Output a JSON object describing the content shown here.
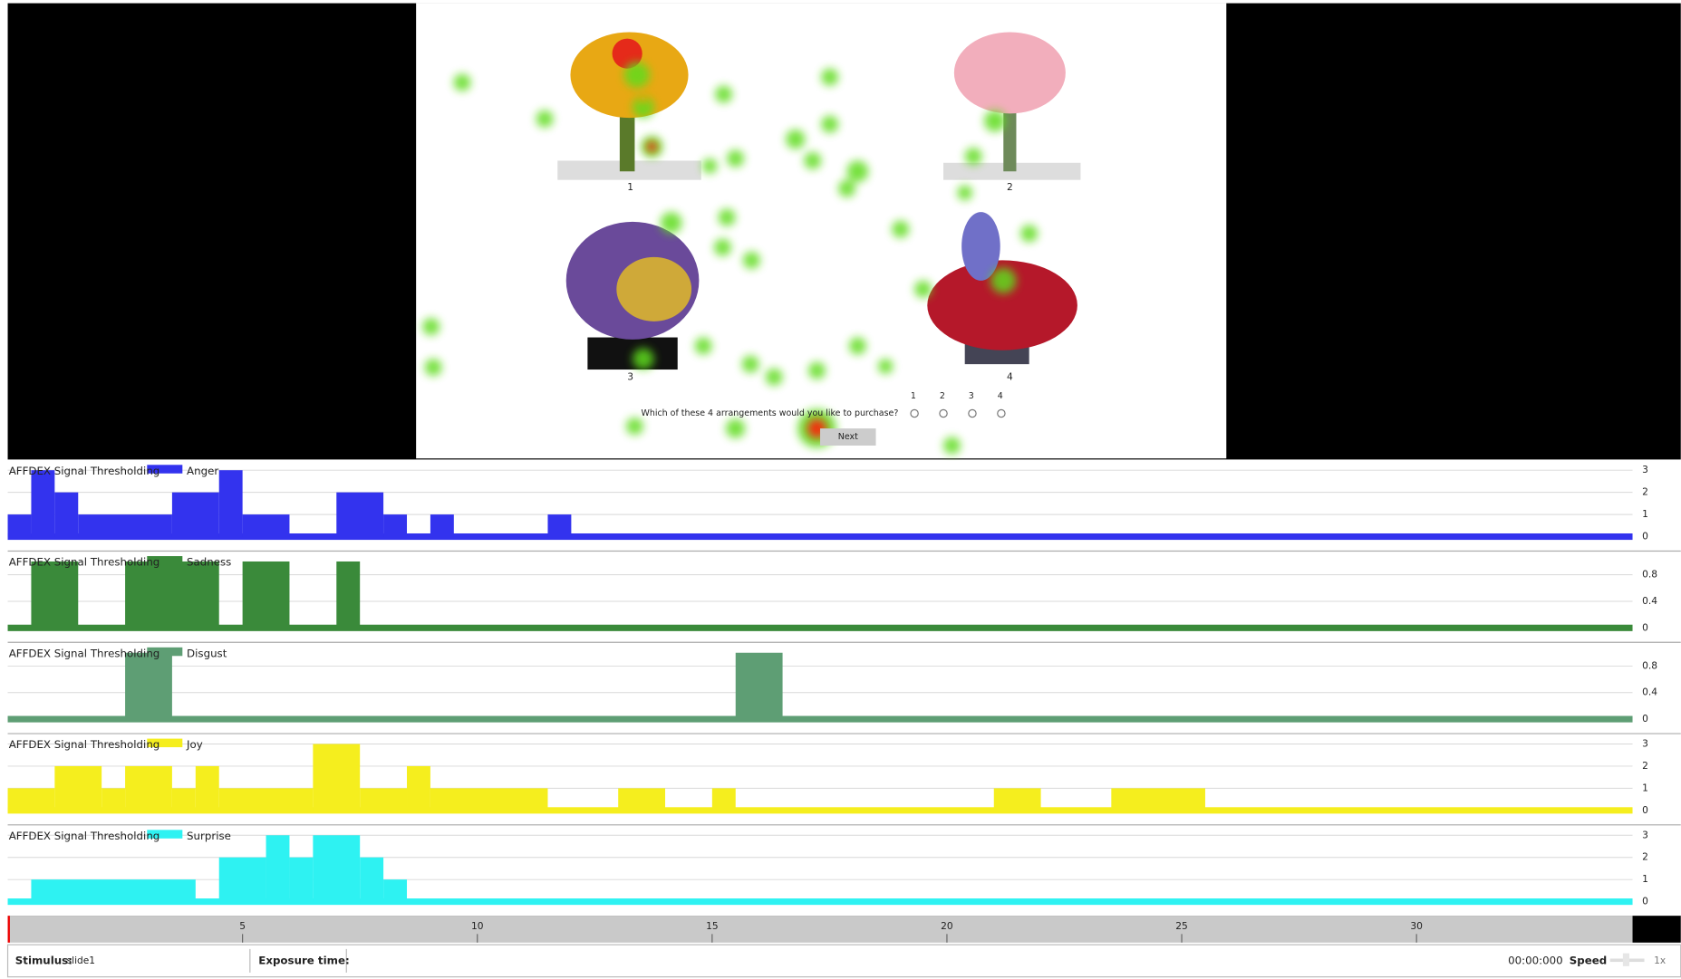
{
  "stimulus": {
    "labels": [
      "1",
      "2",
      "3",
      "4"
    ],
    "question": "Which of these 4 arrangements would you like to purchase?",
    "options": [
      "1",
      "2",
      "3",
      "4"
    ],
    "button": "Next"
  },
  "chart_data": [
    {
      "type": "step",
      "title": "AFFDEX Signal Thresholding",
      "x": [
        0,
        0.5,
        1,
        1.5,
        3.5,
        4.5,
        5,
        6,
        7,
        8,
        8.5,
        9,
        9.5,
        11.5,
        12
      ],
      "series": [
        {
          "name": "Anger",
          "color": "#3333ee",
          "values": [
            1,
            3,
            2,
            1,
            2,
            3,
            1,
            0,
            2,
            1,
            0,
            1,
            0,
            1,
            0
          ]
        }
      ],
      "xlim": [
        0,
        34.6
      ],
      "ylim": [
        0,
        3
      ],
      "yticks": [
        0,
        1,
        2,
        3
      ],
      "grid": true
    },
    {
      "type": "step",
      "title": "AFFDEX Signal Thresholding",
      "x": [
        0,
        0.5,
        1.5,
        2.5,
        4.5,
        5,
        6,
        7,
        7.5
      ],
      "series": [
        {
          "name": "Sadness",
          "color": "#3a8a3a",
          "values": [
            0,
            1,
            0,
            1,
            0,
            1,
            0,
            1,
            0
          ]
        }
      ],
      "xlim": [
        0,
        34.6
      ],
      "ylim": [
        0,
        1
      ],
      "yticks": [
        0,
        0.4,
        0.8
      ],
      "grid": true
    },
    {
      "type": "step",
      "title": "AFFDEX Signal Thresholding",
      "x": [
        0,
        2.5,
        3.5,
        15.5,
        16.5
      ],
      "series": [
        {
          "name": "Disgust",
          "color": "#5e9e74",
          "values": [
            0,
            1,
            0,
            1,
            0
          ]
        }
      ],
      "xlim": [
        0,
        34.6
      ],
      "ylim": [
        0,
        1
      ],
      "yticks": [
        0,
        0.4,
        0.8
      ],
      "grid": true
    },
    {
      "type": "step",
      "title": "AFFDEX Signal Thresholding",
      "x": [
        0,
        1,
        2,
        2.5,
        3.5,
        4,
        4.5,
        6.5,
        7.5,
        8.5,
        9,
        11.5,
        13,
        14,
        15,
        15.5,
        21,
        22,
        23.5,
        25.5
      ],
      "series": [
        {
          "name": "Joy",
          "color": "#f5ee1e",
          "values": [
            1,
            2,
            1,
            2,
            1,
            2,
            1,
            3,
            1,
            2,
            1,
            0,
            1,
            0,
            1,
            0,
            1,
            0,
            1,
            0
          ]
        }
      ],
      "xlim": [
        0,
        34.6
      ],
      "ylim": [
        0,
        3
      ],
      "yticks": [
        0,
        1,
        2,
        3
      ],
      "grid": true
    },
    {
      "type": "step",
      "title": "AFFDEX Signal Thresholding",
      "x": [
        0,
        0.5,
        4,
        4.5,
        5.5,
        6,
        6.5,
        7.5,
        8,
        8.5
      ],
      "series": [
        {
          "name": "Surprise",
          "color": "#2ef2f2",
          "values": [
            0,
            1,
            0,
            2,
            3,
            2,
            3,
            2,
            1,
            0
          ]
        }
      ],
      "xlim": [
        0,
        34.6
      ],
      "ylim": [
        0,
        3
      ],
      "yticks": [
        0,
        1,
        2,
        3
      ],
      "grid": true
    }
  ],
  "timeline": {
    "xlim": [
      0,
      34.6
    ],
    "xticks": [
      5,
      10,
      15,
      20,
      25,
      30
    ]
  },
  "footer": {
    "stimulus_label": "Stimulus:",
    "stimulus_value": "slide1",
    "exposure_label": "Exposure time:",
    "time": "00:00:000",
    "speed_label": "Speed",
    "speed_value": "1x"
  }
}
